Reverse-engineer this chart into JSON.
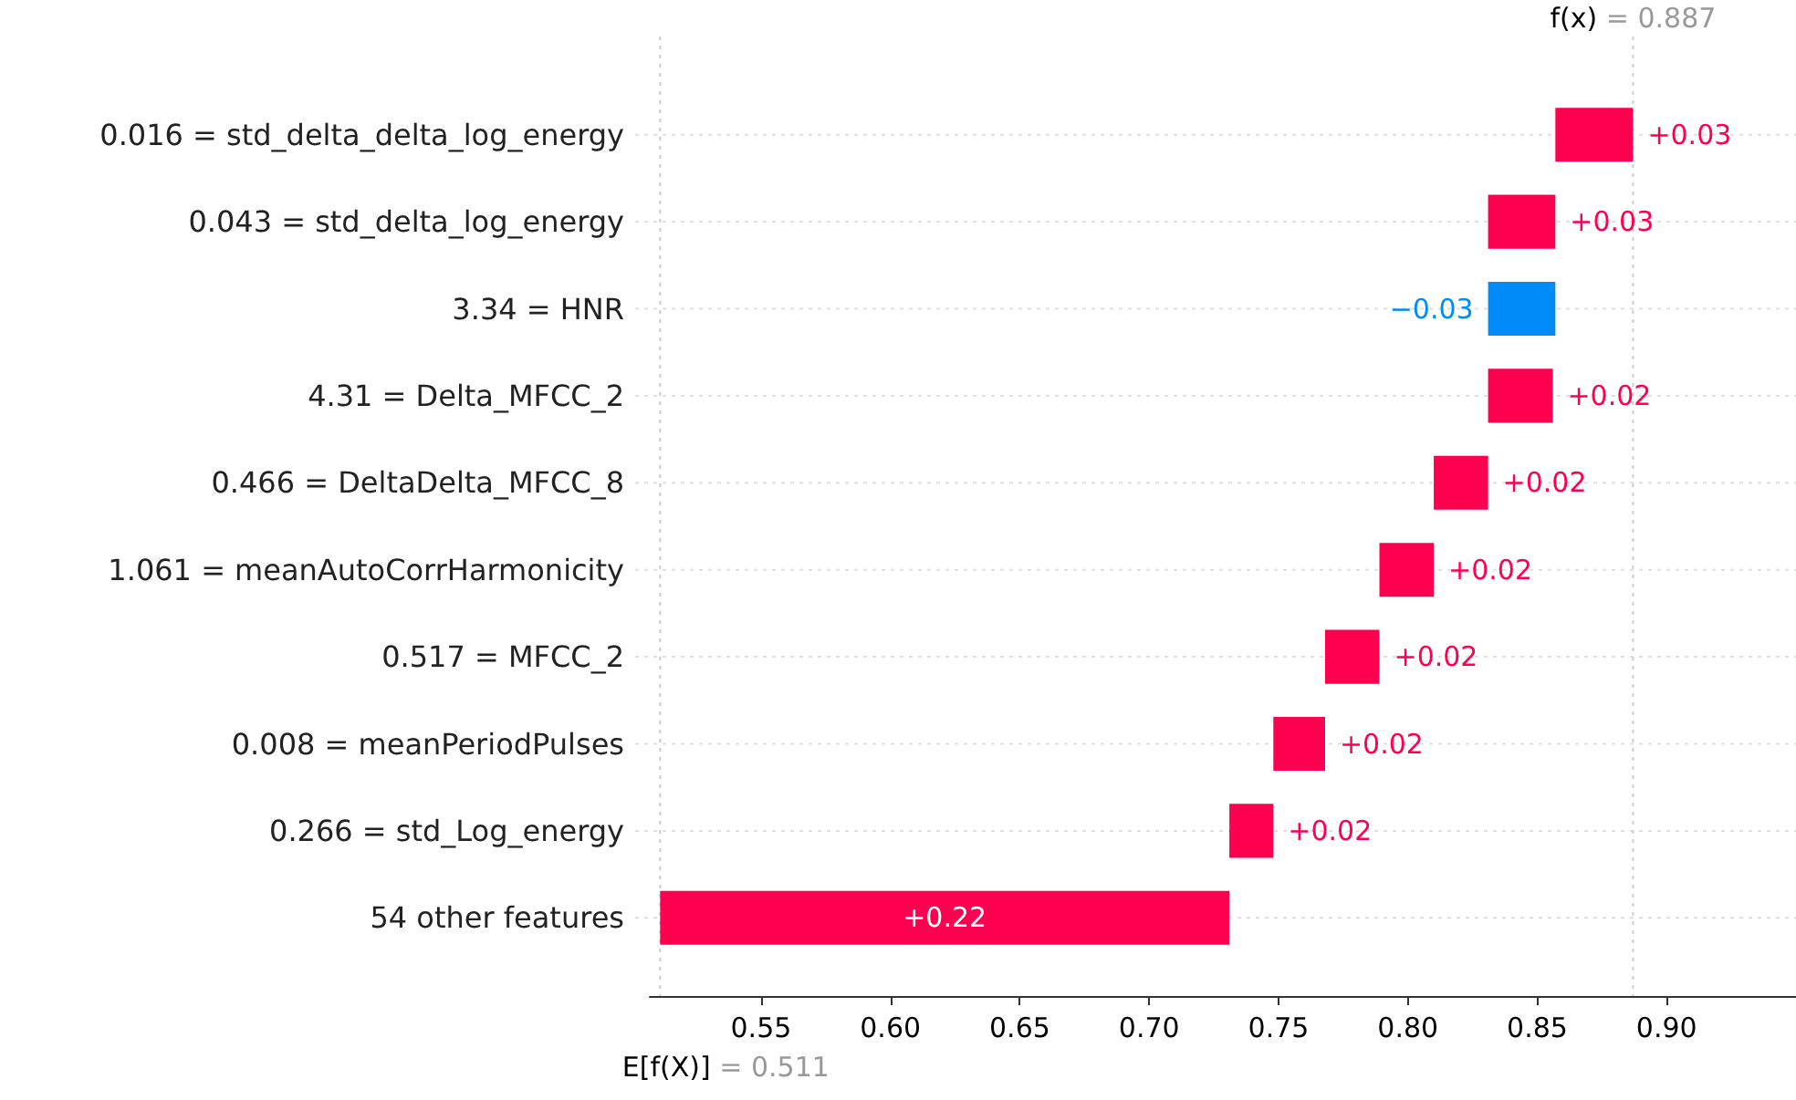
{
  "chart_data": {
    "type": "bar",
    "orientation": "horizontal",
    "categories": [
      "0.016 = std_delta_delta_log_energy",
      "0.043 = std_delta_log_energy",
      "3.34 = HNR",
      "4.31 = Delta_MFCC_2",
      "0.466 = DeltaDelta_MFCC_8",
      "1.061 = meanAutoCorrHarmonicity",
      "0.517 = MFCC_2",
      "0.008 = meanPeriodPulses",
      "0.266 = std_Log_energy",
      "54 other features"
    ],
    "base": [
      0.857,
      0.831,
      0.857,
      0.831,
      0.81,
      0.789,
      0.768,
      0.748,
      0.731,
      0.511
    ],
    "values": [
      0.03,
      0.026,
      -0.026,
      0.025,
      0.021,
      0.021,
      0.021,
      0.02,
      0.017,
      0.22
    ],
    "colors": [
      "#ff0051",
      "#ff0051",
      "#008bfb",
      "#ff0051",
      "#ff0051",
      "#ff0051",
      "#ff0051",
      "#ff0051",
      "#ff0051",
      "#ff0051"
    ],
    "value_labels": [
      "+0.03",
      "+0.03",
      "−0.03",
      "+0.02",
      "+0.02",
      "+0.02",
      "+0.02",
      "+0.02",
      "+0.02",
      "+0.22"
    ],
    "xlim": [
      0.507,
      0.95
    ],
    "xticks": [
      0.55,
      {
        "value": 0.6,
        "label": "0.60"
      },
      0.65,
      {
        "value": 0.7,
        "label": "0.70"
      },
      0.75,
      {
        "value": 0.8,
        "label": "0.80"
      },
      0.85,
      {
        "value": 0.9,
        "label": "0.90"
      }
    ],
    "grid": "y",
    "ref_lines": [
      {
        "axis": "x",
        "value": 0.887,
        "label": "f(x) = 0.887",
        "line_style": "dotted",
        "color": "#cccccc"
      },
      {
        "axis": "x",
        "value": 0.511,
        "label": "E[f(X)] = 0.511",
        "line_style": "dotted",
        "color": "#cccccc"
      }
    ]
  }
}
